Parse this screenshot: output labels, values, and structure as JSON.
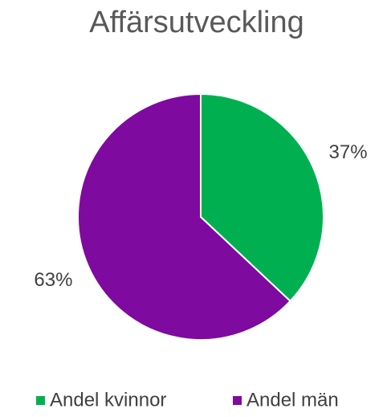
{
  "chart_data": {
    "type": "pie",
    "title": "Affärsutveckling",
    "categories": [
      "Andel kvinnor",
      "Andel män"
    ],
    "values": [
      37,
      63
    ],
    "value_labels": [
      "37%",
      "63%"
    ],
    "colors": [
      "#00b050",
      "#7f0a9f"
    ],
    "legend": "bottom"
  }
}
